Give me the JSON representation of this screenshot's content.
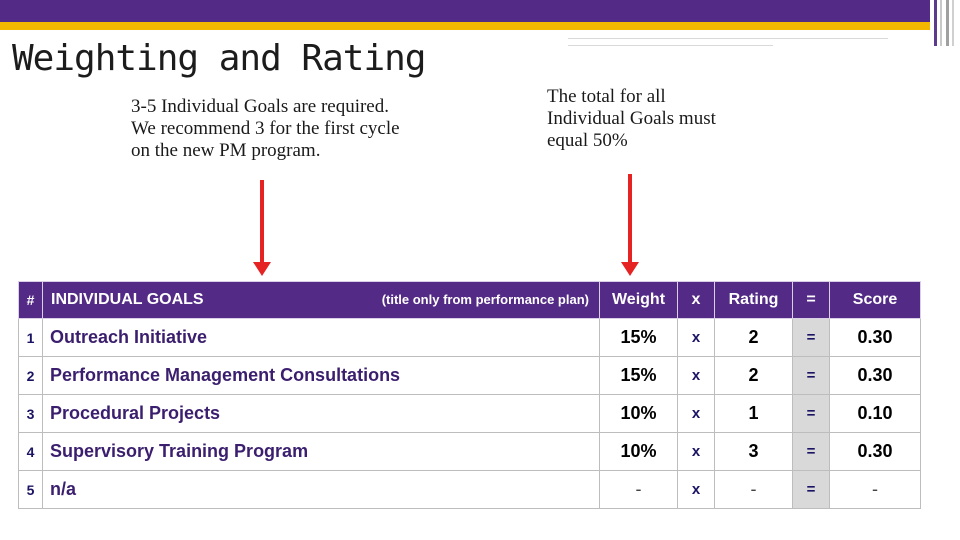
{
  "slide": {
    "title": "Weighting and Rating",
    "note_left": "3-5 Individual Goals are required. We recommend 3 for the first cycle on the new PM program.",
    "note_right": "The total for all Individual Goals must equal 50%"
  },
  "table": {
    "headers": {
      "num": "#",
      "goals": "INDIVIDUAL GOALS",
      "goals_note": "(title only from performance plan)",
      "weight": "Weight",
      "x": "x",
      "rating": "Rating",
      "eq": "=",
      "score": "Score"
    },
    "rows": [
      {
        "num": "1",
        "goal": "Outreach Initiative",
        "weight": "15%",
        "x": "x",
        "rating": "2",
        "eq": "=",
        "score": "0.30"
      },
      {
        "num": "2",
        "goal": "Performance Management Consultations",
        "weight": "15%",
        "x": "x",
        "rating": "2",
        "eq": "=",
        "score": "0.30"
      },
      {
        "num": "3",
        "goal": "Procedural Projects",
        "weight": "10%",
        "x": "x",
        "rating": "1",
        "eq": "=",
        "score": "0.10"
      },
      {
        "num": "4",
        "goal": "Supervisory Training Program",
        "weight": "10%",
        "x": "x",
        "rating": "3",
        "eq": "=",
        "score": "0.30"
      },
      {
        "num": "5",
        "goal": "n/a",
        "weight": "-",
        "x": "x",
        "rating": "-",
        "eq": "=",
        "score": "-"
      }
    ]
  },
  "colors": {
    "purple": "#532a85",
    "gold": "#f5b800",
    "arrow_red": "#e52323"
  }
}
